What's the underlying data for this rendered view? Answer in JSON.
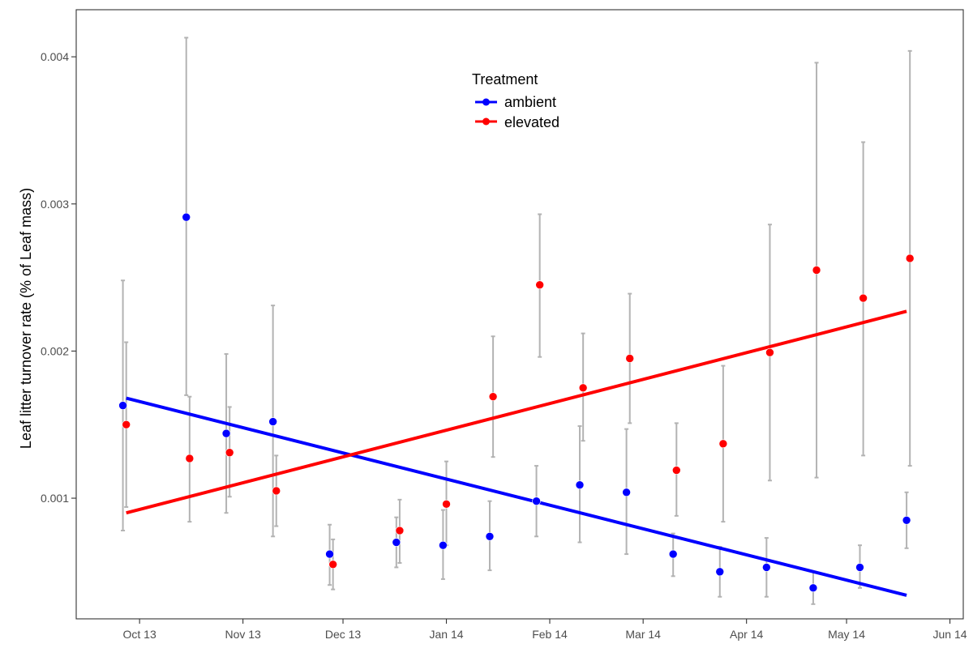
{
  "chart_data": {
    "type": "scatter",
    "title": "",
    "xlabel": "",
    "ylabel": "Leaf litter turnover rate (% of Leaf mass)",
    "x_ticks": [
      "Oct 13",
      "Nov 13",
      "Dec 13",
      "Jan 14",
      "Feb 14",
      "Mar 14",
      "Apr 14",
      "May 14",
      "Jun 14"
    ],
    "x_tick_dates": [
      "2013-10-01",
      "2013-11-01",
      "2013-12-01",
      "2014-01-01",
      "2014-02-01",
      "2014-03-01",
      "2014-04-01",
      "2014-05-01",
      "2014-06-01"
    ],
    "xlim": [
      "2013-09-12",
      "2014-06-05"
    ],
    "y_ticks": [
      "0.001",
      "0.002",
      "0.003",
      "0.004"
    ],
    "y_tick_values": [
      0.001,
      0.002,
      0.003,
      0.004
    ],
    "ylim": [
      0.00018,
      0.00432
    ],
    "grid": false,
    "legend": {
      "title": "Treatment",
      "position": "top-center",
      "entries": [
        "ambient",
        "elevated"
      ]
    },
    "colors": {
      "ambient": "#0000ff",
      "elevated": "#ff0000",
      "error_bar": "#b3b3b3"
    },
    "series": [
      {
        "name": "ambient",
        "points": [
          {
            "x": "2013-09-26",
            "y": 0.00163,
            "ymin": 0.00078,
            "ymax": 0.00248
          },
          {
            "x": "2013-10-15",
            "y": 0.00291,
            "ymin": 0.0017,
            "ymax": 0.00413
          },
          {
            "x": "2013-10-27",
            "y": 0.00144,
            "ymin": 0.0009,
            "ymax": 0.00198
          },
          {
            "x": "2013-11-10",
            "y": 0.00152,
            "ymin": 0.00074,
            "ymax": 0.00231
          },
          {
            "x": "2013-11-27",
            "y": 0.00062,
            "ymin": 0.00041,
            "ymax": 0.00082
          },
          {
            "x": "2013-12-17",
            "y": 0.0007,
            "ymin": 0.00053,
            "ymax": 0.00087
          },
          {
            "x": "2013-12-31",
            "y": 0.00068,
            "ymin": 0.00045,
            "ymax": 0.00092
          },
          {
            "x": "2014-01-14",
            "y": 0.00074,
            "ymin": 0.00051,
            "ymax": 0.00098
          },
          {
            "x": "2014-01-28",
            "y": 0.00098,
            "ymin": 0.00074,
            "ymax": 0.00122
          },
          {
            "x": "2014-02-10",
            "y": 0.00109,
            "ymin": 0.0007,
            "ymax": 0.00149
          },
          {
            "x": "2014-02-24",
            "y": 0.00104,
            "ymin": 0.00062,
            "ymax": 0.00147
          },
          {
            "x": "2014-03-10",
            "y": 0.00062,
            "ymin": 0.00047,
            "ymax": 0.00076
          },
          {
            "x": "2014-03-24",
            "y": 0.0005,
            "ymin": 0.00033,
            "ymax": 0.00067
          },
          {
            "x": "2014-04-07",
            "y": 0.00053,
            "ymin": 0.00033,
            "ymax": 0.00073
          },
          {
            "x": "2014-04-21",
            "y": 0.00039,
            "ymin": 0.00028,
            "ymax": 0.0005
          },
          {
            "x": "2014-05-05",
            "y": 0.00053,
            "ymin": 0.00039,
            "ymax": 0.00068
          },
          {
            "x": "2014-05-19",
            "y": 0.00085,
            "ymin": 0.00066,
            "ymax": 0.00104
          }
        ],
        "trend": [
          {
            "x": "2013-09-27",
            "y": 0.00168
          },
          {
            "x": "2014-05-19",
            "y": 0.00034
          }
        ]
      },
      {
        "name": "elevated",
        "points": [
          {
            "x": "2013-09-27",
            "y": 0.0015,
            "ymin": 0.00094,
            "ymax": 0.00206
          },
          {
            "x": "2013-10-16",
            "y": 0.00127,
            "ymin": 0.00084,
            "ymax": 0.00169
          },
          {
            "x": "2013-10-28",
            "y": 0.00131,
            "ymin": 0.00101,
            "ymax": 0.00162
          },
          {
            "x": "2013-11-11",
            "y": 0.00105,
            "ymin": 0.00081,
            "ymax": 0.00129
          },
          {
            "x": "2013-11-28",
            "y": 0.00055,
            "ymin": 0.00038,
            "ymax": 0.00072
          },
          {
            "x": "2013-12-18",
            "y": 0.00078,
            "ymin": 0.00056,
            "ymax": 0.00099
          },
          {
            "x": "2014-01-01",
            "y": 0.00096,
            "ymin": 0.00068,
            "ymax": 0.00125
          },
          {
            "x": "2014-01-15",
            "y": 0.00169,
            "ymin": 0.00128,
            "ymax": 0.0021
          },
          {
            "x": "2014-01-29",
            "y": 0.00245,
            "ymin": 0.00196,
            "ymax": 0.00293
          },
          {
            "x": "2014-02-11",
            "y": 0.00175,
            "ymin": 0.00139,
            "ymax": 0.00212
          },
          {
            "x": "2014-02-25",
            "y": 0.00195,
            "ymin": 0.00151,
            "ymax": 0.00239
          },
          {
            "x": "2014-03-11",
            "y": 0.00119,
            "ymin": 0.00088,
            "ymax": 0.00151
          },
          {
            "x": "2014-03-25",
            "y": 0.00137,
            "ymin": 0.00084,
            "ymax": 0.0019
          },
          {
            "x": "2014-04-08",
            "y": 0.00199,
            "ymin": 0.00112,
            "ymax": 0.00286
          },
          {
            "x": "2014-04-22",
            "y": 0.00255,
            "ymin": 0.00114,
            "ymax": 0.00396
          },
          {
            "x": "2014-05-06",
            "y": 0.00236,
            "ymin": 0.00129,
            "ymax": 0.00342
          },
          {
            "x": "2014-05-20",
            "y": 0.00263,
            "ymin": 0.00122,
            "ymax": 0.00404
          }
        ],
        "trend": [
          {
            "x": "2013-09-27",
            "y": 0.0009
          },
          {
            "x": "2014-05-19",
            "y": 0.00227
          }
        ]
      }
    ]
  }
}
